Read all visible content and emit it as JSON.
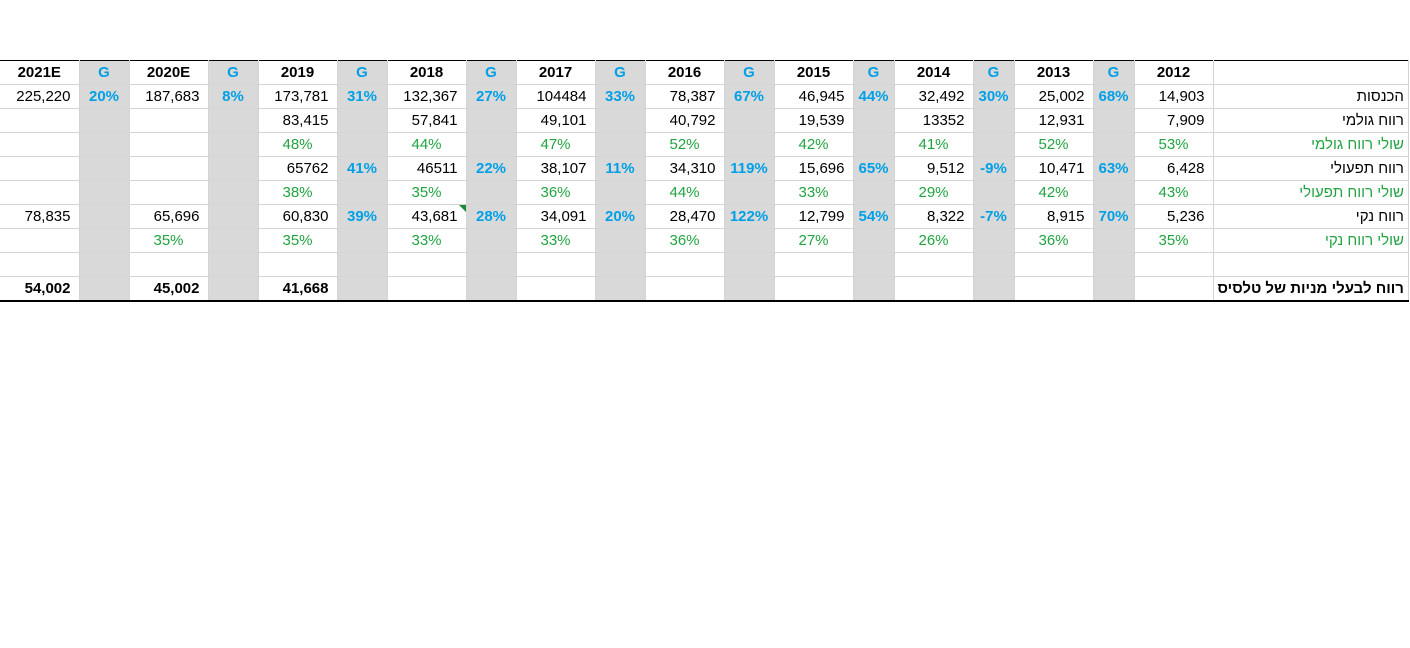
{
  "header": [
    "2021E",
    "G",
    "2020E",
    "G",
    "2019",
    "G",
    "2018",
    "G",
    "2017",
    "G",
    "2016",
    "G",
    "2015",
    "G",
    "2014",
    "G",
    "2013",
    "G",
    "2012",
    ""
  ],
  "rows": [
    {
      "label": "הכנסות",
      "type": "num",
      "cells": [
        "225,220",
        "20%",
        "187,683",
        "8%",
        "173,781",
        "31%",
        "132,367",
        "27%",
        "104484",
        "33%",
        "78,387",
        "67%",
        "46,945",
        "44%",
        "32,492",
        "30%",
        "25,002",
        "68%",
        "14,903"
      ]
    },
    {
      "label": "רווח גולמי",
      "type": "num",
      "cells": [
        "",
        "",
        "",
        "",
        "83,415",
        "",
        "57,841",
        "",
        "49,101",
        "",
        "40,792",
        "",
        "19,539",
        "",
        "13352",
        "",
        "12,931",
        "",
        "7,909"
      ]
    },
    {
      "label": "שולי רווח גולמי",
      "type": "pct",
      "cells": [
        "",
        "",
        "",
        "",
        "48%",
        "",
        "44%",
        "",
        "47%",
        "",
        "52%",
        "",
        "42%",
        "",
        "41%",
        "",
        "52%",
        "",
        "53%"
      ]
    },
    {
      "label": "רווח תפעולי",
      "type": "num",
      "cells": [
        "",
        "",
        "",
        "",
        "65762",
        "41%",
        "46511",
        "22%",
        "38,107",
        "11%",
        "34,310",
        "119%",
        "15,696",
        "65%",
        "9,512",
        "-9%",
        "10,471",
        "63%",
        "6,428"
      ]
    },
    {
      "label": "שולי רווח תפעולי",
      "type": "pct",
      "cells": [
        "",
        "",
        "",
        "",
        "38%",
        "",
        "35%",
        "",
        "36%",
        "",
        "44%",
        "",
        "33%",
        "",
        "29%",
        "",
        "42%",
        "",
        "43%"
      ]
    },
    {
      "label": "רווח נקי",
      "type": "num",
      "cells": [
        "78,835",
        "",
        "65,696",
        "",
        "60,830",
        "39%",
        "43,681",
        "28%",
        "34,091",
        "20%",
        "28,470",
        "122%",
        "12,799",
        "54%",
        "8,322",
        "-7%",
        "8,915",
        "70%",
        "5,236"
      ]
    },
    {
      "label": "שולי רווח נקי",
      "type": "pct",
      "cells": [
        "",
        "",
        "35%",
        "",
        "35%",
        "",
        "33%",
        "",
        "33%",
        "",
        "36%",
        "",
        "27%",
        "",
        "26%",
        "",
        "36%",
        "",
        "35%"
      ]
    },
    {
      "label": "",
      "type": "num",
      "cells": [
        "",
        "",
        "",
        "",
        "",
        "",
        "",
        "",
        "",
        "",
        "",
        "",
        "",
        "",
        "",
        "",
        "",
        "",
        ""
      ]
    },
    {
      "label": "רווח לבעלי מניות של טלסיס",
      "type": "total",
      "cells": [
        "54,002",
        "",
        "45,002",
        "",
        "41,668",
        "",
        "",
        "",
        "",
        "",
        "",
        "",
        "",
        "",
        "",
        "",
        "",
        "",
        ""
      ]
    }
  ],
  "colors": {
    "growth": "#00a0e6",
    "margin": "#21a342",
    "gcol": "#d9d9d9"
  }
}
